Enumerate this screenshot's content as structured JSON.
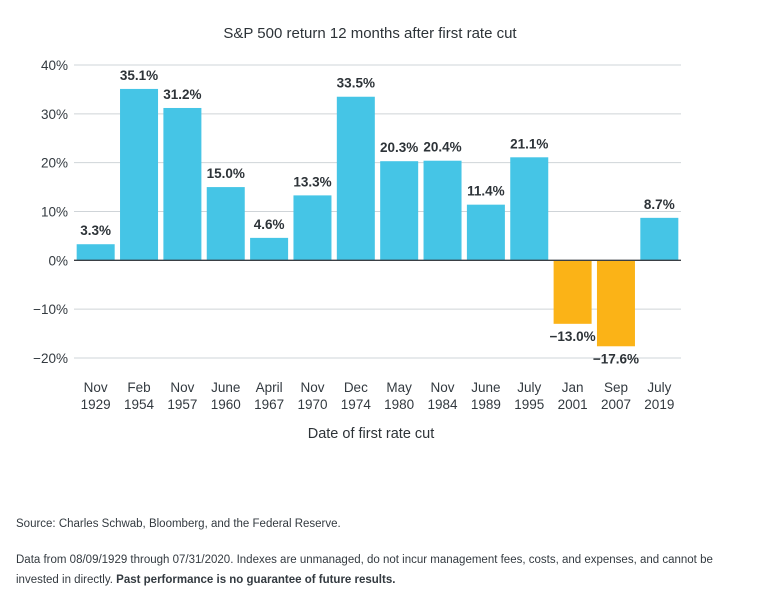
{
  "chart_data": {
    "type": "bar",
    "title": "S&P 500 return 12 months after first rate cut",
    "xlabel": "Date of first rate cut",
    "ylabel": "",
    "ylim": [
      -20,
      40
    ],
    "yticks": [
      40,
      30,
      20,
      10,
      0,
      -10,
      -20
    ],
    "ytick_labels": [
      "40%",
      "30%",
      "20%",
      "10%",
      "0%",
      "−10%",
      "−20%"
    ],
    "grid": true,
    "legend": "none",
    "categories": [
      [
        "Nov",
        "1929"
      ],
      [
        "Feb",
        "1954"
      ],
      [
        "Nov",
        "1957"
      ],
      [
        "June",
        "1960"
      ],
      [
        "April",
        "1967"
      ],
      [
        "Nov",
        "1970"
      ],
      [
        "Dec",
        "1974"
      ],
      [
        "May",
        "1980"
      ],
      [
        "Nov",
        "1984"
      ],
      [
        "June",
        "1989"
      ],
      [
        "July",
        "1995"
      ],
      [
        "Jan",
        "2001"
      ],
      [
        "Sep",
        "2007"
      ],
      [
        "July",
        "2019"
      ]
    ],
    "values": [
      3.3,
      35.1,
      31.2,
      15.0,
      4.6,
      13.3,
      33.5,
      20.3,
      20.4,
      11.4,
      21.1,
      -13.0,
      -17.6,
      8.7
    ],
    "value_labels": [
      "3.3%",
      "35.1%",
      "31.2%",
      "15.0%",
      "4.6%",
      "13.3%",
      "33.5%",
      "20.3%",
      "20.4%",
      "11.4%",
      "21.1%",
      "−13.0%",
      "−17.6%",
      "8.7%"
    ],
    "colors": {
      "positive": "#45c5e6",
      "negative": "#fbb317",
      "grid": "#cfd4d8",
      "zero_line": "#3a3f44"
    }
  },
  "footnotes": {
    "source": "Source: Charles Schwab, Bloomberg, and the Federal Reserve.",
    "data_note": "Data from 08/09/1929 through 07/31/2020. Indexes are unmanaged, do not incur management fees, costs, and expenses, and cannot be invested in directly.",
    "disclaimer": "Past performance is no guarantee of future results."
  }
}
